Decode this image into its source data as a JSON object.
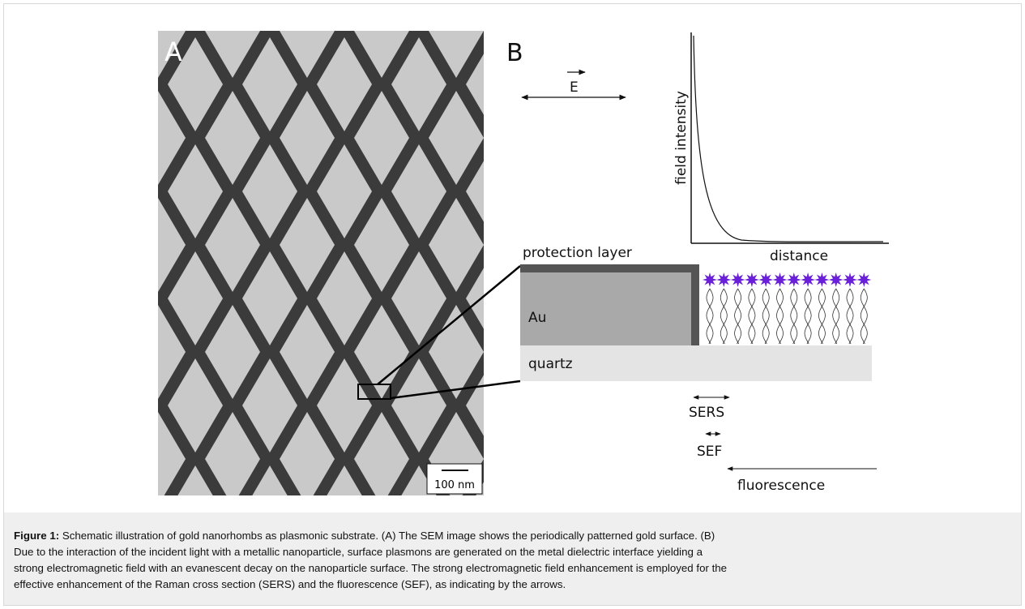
{
  "panel_a": {
    "label": "A",
    "scale_bar": "100 nm"
  },
  "panel_b": {
    "label": "B",
    "field_symbol": "E",
    "y_axis_label": "field intensity",
    "x_axis_label": "distance",
    "layers": {
      "protection": "protection layer",
      "metal": "Au",
      "substrate": "quartz"
    },
    "arrows": {
      "sers": "SERS",
      "sef": "SEF",
      "fluorescence": "fluorescence"
    }
  },
  "caption": {
    "label": "Figure 1:",
    "lines": [
      "Schematic illustration of gold nanorhombs as plasmonic substrate. (A) The SEM image shows the periodically patterned gold surface. (B)",
      "Due to the interaction of the incident light with a metallic nanoparticle, surface plasmons are generated on the metal dielectric interface yielding a",
      "strong electromagnetic field with an evanescent decay on the nanoparticle surface. The strong electromagnetic field enhancement is employed for the",
      "effective enhancement of the Raman cross section (SERS) and the fluorescence (SEF), as indicating by the arrows."
    ]
  }
}
